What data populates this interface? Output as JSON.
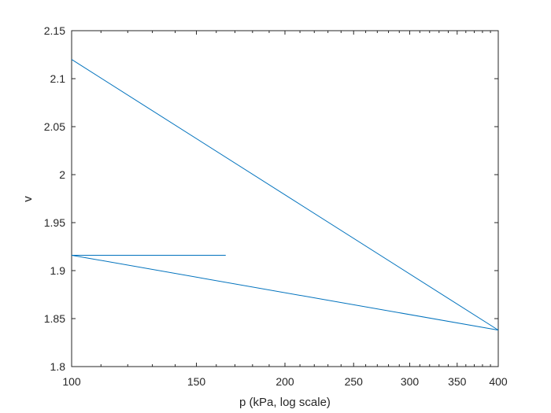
{
  "chart_data": {
    "type": "line",
    "xlabel": "p (kPa, log scale)",
    "ylabel": "v",
    "x_scale": "log",
    "xlim": [
      100,
      400
    ],
    "ylim": [
      1.8,
      2.15
    ],
    "x_major_ticks": [
      100,
      150,
      200,
      250,
      300,
      350,
      400
    ],
    "x_tick_labels": [
      "100",
      "150",
      "200",
      "250",
      "300",
      "350",
      "400"
    ],
    "y_ticks": [
      1.8,
      1.85,
      1.9,
      1.95,
      2.0,
      2.05,
      2.1,
      2.15
    ],
    "y_tick_labels": [
      "1.8",
      "1.85",
      "1.9",
      "1.95",
      "2",
      "2.05",
      "2.1",
      "2.15"
    ],
    "grid": false,
    "line_color": "#0072BD",
    "series": [
      {
        "x": [
          100,
          165
        ],
        "y": [
          1.916,
          1.916
        ]
      },
      {
        "x": [
          100,
          400
        ],
        "y": [
          1.916,
          1.838
        ]
      },
      {
        "x": [
          100,
          400
        ],
        "y": [
          2.12,
          1.838
        ]
      }
    ]
  }
}
